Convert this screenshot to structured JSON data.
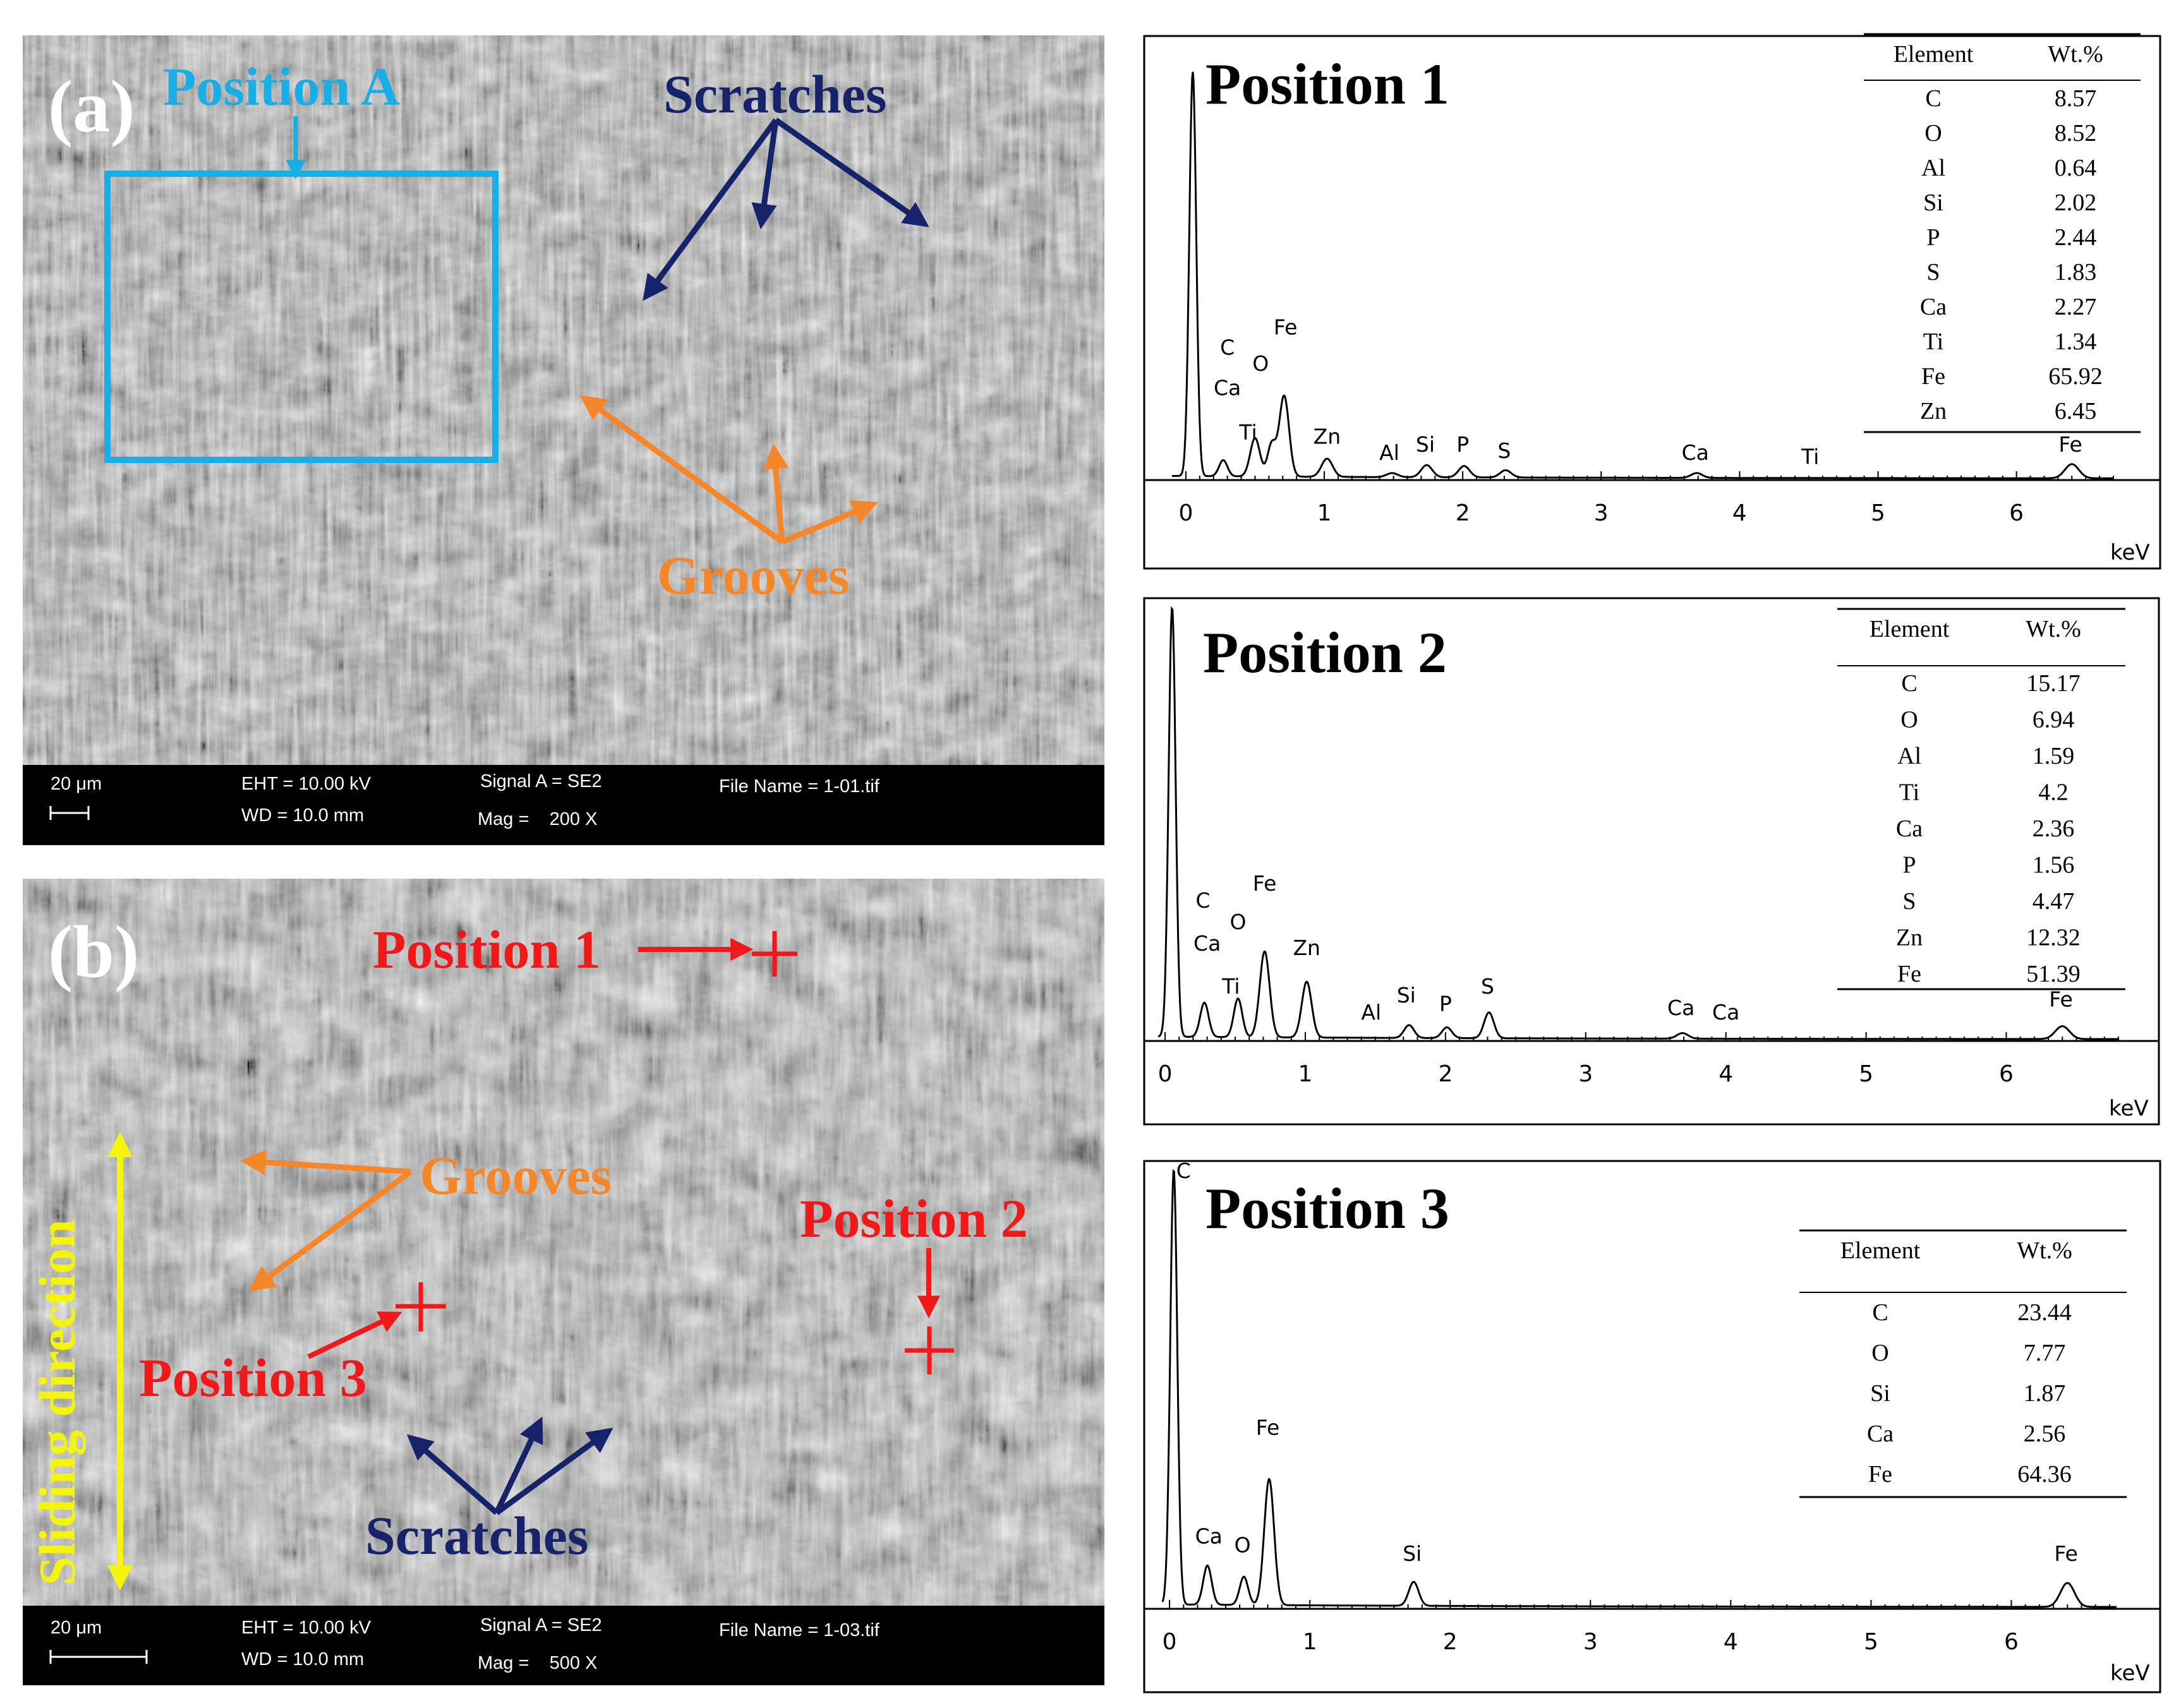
{
  "panel_a": {
    "label": "(a)",
    "position_label": "Position A",
    "scratches_label": "Scratches",
    "grooves_label": "Grooves",
    "info": {
      "scale": "20 μm",
      "eht": "EHT = 10.00 kV",
      "wd": "WD = 10.0 mm",
      "signal": "Signal A = SE2",
      "mag": "Mag =    200 X",
      "file": "File Name = 1-01.tif"
    }
  },
  "panel_b": {
    "label": "(b)",
    "pos1_label": "Position 1",
    "pos2_label": "Position 2",
    "pos3_label": "Position 3",
    "grooves_label": "Grooves",
    "scratches_label": "Scratches",
    "sliding_label": "Sliding direction",
    "info": {
      "scale": "20 μm",
      "eht": "EHT = 10.00 kV",
      "wd": "WD = 10.0 mm",
      "signal": "Signal A = SE2",
      "mag": "Mag =    500 X",
      "file": "File Name = 1-03.tif"
    }
  },
  "colors": {
    "position_a": "#19aee8",
    "scratches": "#16226a",
    "grooves": "#f5862a",
    "positions": "#f01818",
    "sliding": "#f4f40c"
  },
  "chart_data": [
    {
      "type": "line",
      "title": "Position 1",
      "xlabel": "keV",
      "xlim": [
        -0.1,
        6.7
      ],
      "x_ticks": [
        "0",
        "1",
        "2",
        "3",
        "4",
        "5",
        "6"
      ],
      "peaks": [
        {
          "x": 0.05,
          "h": 1.0,
          "w": 0.025
        },
        {
          "x": 0.27,
          "h": 0.04,
          "w": 0.03
        },
        {
          "x": 0.5,
          "h": 0.095,
          "w": 0.035
        },
        {
          "x": 0.62,
          "h": 0.08,
          "w": 0.03
        },
        {
          "x": 0.71,
          "h": 0.2,
          "w": 0.035
        },
        {
          "x": 1.02,
          "h": 0.045,
          "w": 0.04
        },
        {
          "x": 1.49,
          "h": 0.01,
          "w": 0.04
        },
        {
          "x": 1.74,
          "h": 0.03,
          "w": 0.04
        },
        {
          "x": 2.01,
          "h": 0.028,
          "w": 0.04
        },
        {
          "x": 2.31,
          "h": 0.018,
          "w": 0.04
        },
        {
          "x": 3.69,
          "h": 0.012,
          "w": 0.04
        },
        {
          "x": 6.4,
          "h": 0.035,
          "w": 0.05
        }
      ],
      "peak_labels": [
        {
          "text": "C",
          "x": 0.3,
          "y": 0.31
        },
        {
          "text": "Ca",
          "x": 0.3,
          "y": 0.21
        },
        {
          "text": "O",
          "x": 0.54,
          "y": 0.27
        },
        {
          "text": "Fe",
          "x": 0.72,
          "y": 0.36
        },
        {
          "text": "Ti",
          "x": 0.45,
          "y": 0.1
        },
        {
          "text": "Zn",
          "x": 1.02,
          "y": 0.09
        },
        {
          "text": "Al",
          "x": 1.47,
          "y": 0.05
        },
        {
          "text": "Si",
          "x": 1.73,
          "y": 0.07
        },
        {
          "text": "P",
          "x": 2.0,
          "y": 0.07
        },
        {
          "text": "S",
          "x": 2.3,
          "y": 0.055
        },
        {
          "text": "Ca",
          "x": 3.68,
          "y": 0.05
        },
        {
          "text": "Ti",
          "x": 4.51,
          "y": 0.04
        },
        {
          "text": "Fe",
          "x": 6.39,
          "y": 0.07
        }
      ],
      "table": {
        "headers": [
          "Element",
          "Wt.%"
        ],
        "rows": [
          [
            "C",
            "8.57"
          ],
          [
            "O",
            "8.52"
          ],
          [
            "Al",
            "0.64"
          ],
          [
            "Si",
            "2.02"
          ],
          [
            "P",
            "2.44"
          ],
          [
            "S",
            "1.83"
          ],
          [
            "Ca",
            "2.27"
          ],
          [
            "Ti",
            "1.34"
          ],
          [
            "Fe",
            "65.92"
          ],
          [
            "Zn",
            "6.45"
          ]
        ]
      }
    },
    {
      "type": "line",
      "title": "Position 2",
      "xlabel": "keV",
      "xlim": [
        -0.05,
        6.8
      ],
      "x_ticks": [
        "0",
        "1",
        "2",
        "3",
        "4",
        "5",
        "6"
      ],
      "peaks": [
        {
          "x": 0.05,
          "h": 1.0,
          "w": 0.025
        },
        {
          "x": 0.28,
          "h": 0.08,
          "w": 0.03
        },
        {
          "x": 0.52,
          "h": 0.09,
          "w": 0.03
        },
        {
          "x": 0.71,
          "h": 0.2,
          "w": 0.035
        },
        {
          "x": 1.01,
          "h": 0.13,
          "w": 0.035
        },
        {
          "x": 1.74,
          "h": 0.03,
          "w": 0.035
        },
        {
          "x": 2.01,
          "h": 0.025,
          "w": 0.035
        },
        {
          "x": 2.31,
          "h": 0.06,
          "w": 0.035
        },
        {
          "x": 3.69,
          "h": 0.013,
          "w": 0.04
        },
        {
          "x": 6.4,
          "h": 0.03,
          "w": 0.05
        }
      ],
      "peak_labels": [
        {
          "text": "C",
          "x": 0.27,
          "y": 0.31
        },
        {
          "text": "Ca",
          "x": 0.3,
          "y": 0.21
        },
        {
          "text": "O",
          "x": 0.52,
          "y": 0.26
        },
        {
          "text": "Fe",
          "x": 0.71,
          "y": 0.35
        },
        {
          "text": "Ti",
          "x": 0.47,
          "y": 0.11
        },
        {
          "text": "Zn",
          "x": 1.01,
          "y": 0.2
        },
        {
          "text": "Al",
          "x": 1.47,
          "y": 0.05
        },
        {
          "text": "Si",
          "x": 1.72,
          "y": 0.09
        },
        {
          "text": "P",
          "x": 2.0,
          "y": 0.07
        },
        {
          "text": "S",
          "x": 2.3,
          "y": 0.11
        },
        {
          "text": "Ca",
          "x": 3.68,
          "y": 0.06
        },
        {
          "text": "Ca",
          "x": 4.0,
          "y": 0.05
        },
        {
          "text": "Fe",
          "x": 6.39,
          "y": 0.08
        }
      ],
      "table": {
        "headers": [
          "Element",
          "Wt.%"
        ],
        "rows": [
          [
            "C",
            "15.17"
          ],
          [
            "O",
            "6.94"
          ],
          [
            "Al",
            "1.59"
          ],
          [
            "Ti",
            "4.2"
          ],
          [
            "Ca",
            "2.36"
          ],
          [
            "P",
            "1.56"
          ],
          [
            "S",
            "4.47"
          ],
          [
            "Zn",
            "12.32"
          ],
          [
            "Fe",
            "51.39"
          ]
        ]
      }
    },
    {
      "type": "line",
      "title": "Position 3",
      "xlabel": "keV",
      "xlim": [
        -0.05,
        6.75
      ],
      "x_ticks": [
        "0",
        "1",
        "2",
        "3",
        "4",
        "5",
        "6"
      ],
      "peaks": [
        {
          "x": 0.03,
          "h": 1.0,
          "w": 0.025
        },
        {
          "x": 0.27,
          "h": 0.09,
          "w": 0.03
        },
        {
          "x": 0.53,
          "h": 0.065,
          "w": 0.03
        },
        {
          "x": 0.71,
          "h": 0.29,
          "w": 0.035
        },
        {
          "x": 1.74,
          "h": 0.055,
          "w": 0.035
        },
        {
          "x": 6.4,
          "h": 0.055,
          "w": 0.05
        }
      ],
      "peak_labels": [
        {
          "text": "C",
          "x": 0.1,
          "y": 0.99
        },
        {
          "text": "Ca",
          "x": 0.28,
          "y": 0.15
        },
        {
          "text": "O",
          "x": 0.52,
          "y": 0.13
        },
        {
          "text": "Fe",
          "x": 0.7,
          "y": 0.4
        },
        {
          "text": "Si",
          "x": 1.73,
          "y": 0.11
        },
        {
          "text": "Fe",
          "x": 6.39,
          "y": 0.11
        }
      ],
      "table": {
        "headers": [
          "Element",
          "Wt.%"
        ],
        "rows": [
          [
            "C",
            "23.44"
          ],
          [
            "O",
            "7.77"
          ],
          [
            "Si",
            "1.87"
          ],
          [
            "Ca",
            "2.56"
          ],
          [
            "Fe",
            "64.36"
          ]
        ]
      }
    }
  ]
}
